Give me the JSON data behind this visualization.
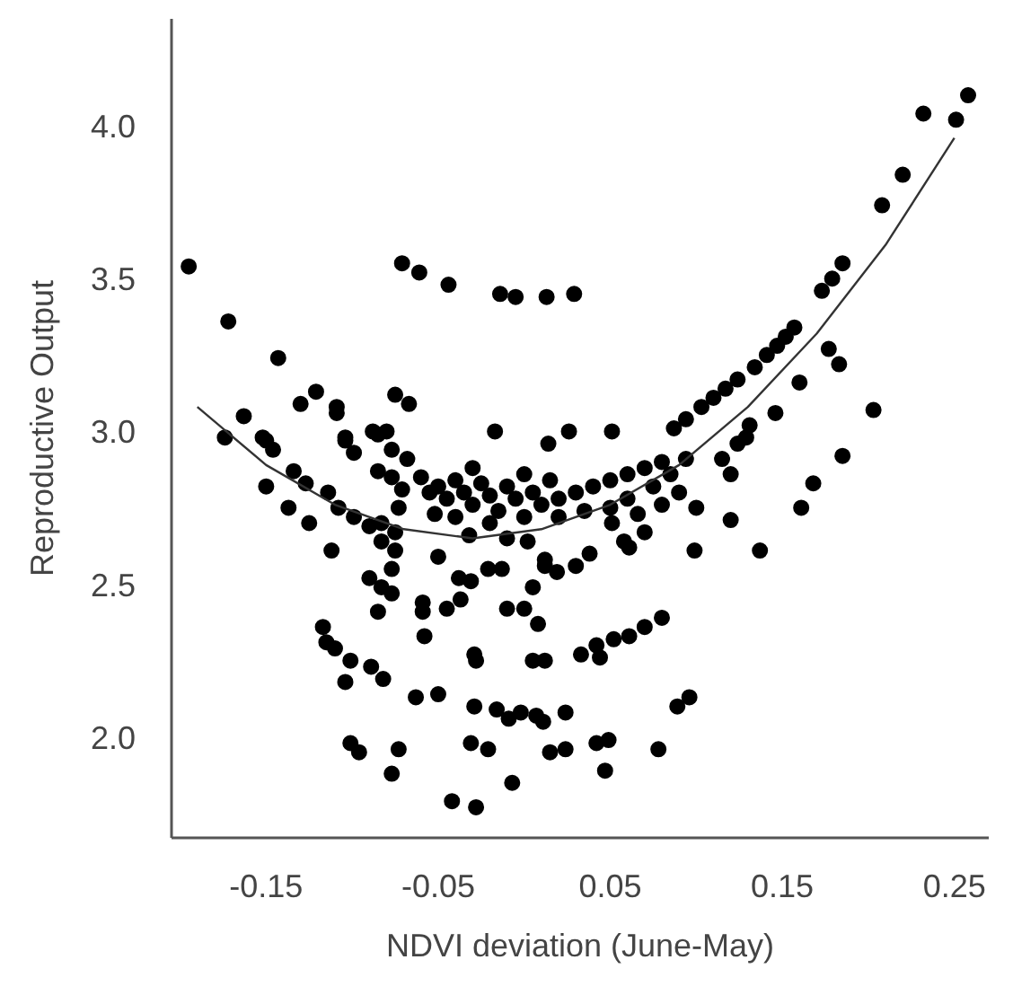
{
  "chart_data": {
    "type": "scatter",
    "xlabel": "NDVI deviation (June-May)",
    "ylabel": "Reproductive Output",
    "xlim": [
      -0.205,
      0.27
    ],
    "ylim": [
      1.67,
      4.35
    ],
    "xticks": [
      -0.15,
      -0.05,
      0.05,
      0.15,
      0.25
    ],
    "yticks": [
      {
        "value": 2,
        "label": "2.0"
      },
      2.5,
      {
        "value": 3,
        "label": "3.0"
      },
      3.5,
      {
        "value": 4,
        "label": "4.0"
      }
    ],
    "grid": false,
    "series": [
      {
        "color": "#000000",
        "marker": "circle",
        "x": [
          -0.195,
          -0.172,
          -0.143,
          -0.071,
          -0.061,
          -0.044,
          -0.014,
          -0.005,
          0.013,
          0.029,
          -0.163,
          -0.174,
          -0.13,
          -0.121,
          -0.109,
          -0.109,
          -0.075,
          -0.067,
          -0.152,
          -0.104,
          -0.088,
          -0.08,
          -0.017,
          0.014,
          0.051,
          0.258,
          0.232,
          0.251,
          0.22,
          0.208,
          0.185,
          0.179,
          0.173,
          0.157,
          0.152,
          0.147,
          0.141,
          0.134,
          0.124,
          0.117,
          0.11,
          0.103,
          0.094,
          0.087,
          0.177,
          0.183,
          0.16,
          0.146,
          0.203,
          0.131,
          0.026,
          -0.15,
          -0.146,
          -0.134,
          -0.127,
          -0.15,
          -0.137,
          -0.125,
          -0.114,
          -0.108,
          -0.099,
          -0.09,
          -0.112,
          -0.104,
          -0.099,
          -0.085,
          -0.077,
          -0.068,
          -0.085,
          -0.077,
          -0.071,
          -0.073,
          -0.083,
          -0.083,
          -0.075,
          -0.075,
          -0.077,
          -0.09,
          -0.083,
          -0.077,
          -0.085,
          -0.117,
          -0.115,
          -0.11,
          -0.101,
          -0.104,
          -0.089,
          -0.082,
          -0.101,
          -0.096,
          -0.073,
          -0.077,
          -0.063,
          -0.05,
          -0.059,
          -0.059,
          -0.058,
          -0.05,
          -0.045,
          -0.037,
          -0.038,
          -0.031,
          -0.021,
          -0.013,
          -0.052,
          -0.032,
          -0.029,
          -0.028,
          -0.029,
          -0.016,
          -0.009,
          -0.002,
          0.007,
          0.011,
          -0.031,
          -0.021,
          -0.007,
          -0.042,
          -0.028,
          0.015,
          -0.01,
          0.0,
          0.008,
          0.005,
          0.012,
          0.005,
          0.012,
          -0.01,
          0.002,
          0.185,
          0.168,
          0.161,
          0.12,
          0.115,
          0.124,
          0.129,
          0.1,
          0.12,
          0.099,
          0.137,
          0.09,
          0.08,
          0.094,
          0.066,
          0.07,
          0.058,
          0.061,
          0.05,
          0.051,
          0.038,
          0.03,
          0.019,
          0.012,
          0.08,
          0.07,
          0.061,
          0.052,
          0.042,
          0.033,
          0.044,
          0.096,
          0.089,
          0.024,
          0.049,
          0.042,
          0.024,
          0.078,
          0.047,
          0.02,
          0.03,
          0.04,
          0.05,
          0.06,
          0.07,
          0.08,
          0.02,
          0.035,
          0.06,
          0.075,
          0.085,
          -0.06,
          -0.055,
          -0.05,
          -0.045,
          -0.04,
          -0.035,
          -0.03,
          -0.025,
          -0.02,
          -0.015,
          -0.01,
          -0.005,
          0.0,
          0.005,
          0.01,
          0.015,
          -0.02,
          -0.04,
          0.0,
          -0.03
        ],
        "values": [
          3.54,
          3.36,
          3.24,
          3.55,
          3.52,
          3.48,
          3.45,
          3.44,
          3.44,
          3.45,
          3.05,
          2.98,
          3.09,
          3.13,
          3.08,
          3.06,
          3.12,
          3.09,
          2.98,
          2.98,
          3.0,
          3.0,
          3.0,
          2.96,
          3.0,
          4.1,
          4.04,
          4.02,
          3.84,
          3.74,
          3.55,
          3.5,
          3.46,
          3.34,
          3.31,
          3.28,
          3.25,
          3.21,
          3.17,
          3.14,
          3.11,
          3.08,
          3.04,
          3.01,
          3.27,
          3.22,
          3.16,
          3.06,
          3.07,
          3.02,
          3.0,
          2.97,
          2.94,
          2.87,
          2.83,
          2.82,
          2.75,
          2.7,
          2.8,
          2.75,
          2.72,
          2.69,
          2.61,
          2.97,
          2.93,
          2.99,
          2.94,
          2.91,
          2.87,
          2.85,
          2.81,
          2.75,
          2.7,
          2.64,
          2.67,
          2.61,
          2.55,
          2.52,
          2.49,
          2.47,
          2.41,
          2.36,
          2.31,
          2.29,
          2.25,
          2.18,
          2.23,
          2.19,
          1.98,
          1.95,
          1.96,
          1.88,
          2.13,
          2.14,
          2.44,
          2.41,
          2.33,
          2.59,
          2.42,
          2.45,
          2.52,
          2.51,
          2.55,
          2.55,
          2.73,
          2.66,
          2.27,
          2.25,
          2.1,
          2.09,
          2.06,
          2.08,
          2.07,
          2.05,
          1.98,
          1.96,
          1.85,
          1.79,
          1.77,
          1.95,
          2.42,
          2.42,
          2.37,
          2.25,
          2.25,
          2.49,
          2.56,
          2.65,
          2.64,
          2.92,
          2.83,
          2.75,
          2.86,
          2.91,
          2.96,
          2.98,
          2.75,
          2.71,
          2.61,
          2.61,
          2.8,
          2.76,
          2.91,
          2.73,
          2.67,
          2.64,
          2.62,
          2.75,
          2.7,
          2.6,
          2.56,
          2.54,
          2.58,
          2.39,
          2.36,
          2.33,
          2.32,
          2.3,
          2.27,
          2.26,
          2.13,
          2.1,
          2.08,
          1.99,
          1.98,
          1.96,
          1.96,
          1.89,
          2.78,
          2.8,
          2.82,
          2.84,
          2.86,
          2.88,
          2.9,
          2.72,
          2.74,
          2.78,
          2.82,
          2.86,
          2.85,
          2.8,
          2.82,
          2.78,
          2.84,
          2.8,
          2.76,
          2.83,
          2.79,
          2.74,
          2.82,
          2.78,
          2.72,
          2.8,
          2.76,
          2.84,
          2.7,
          2.72,
          2.86,
          2.88
        ]
      },
      {
        "type": "line",
        "color": "#333333",
        "marker": "none",
        "line_style": "solid",
        "x": [
          -0.19,
          -0.15,
          -0.11,
          -0.07,
          -0.03,
          0.01,
          0.05,
          0.09,
          0.13,
          0.17,
          0.21,
          0.25
        ],
        "values": [
          3.08,
          2.89,
          2.76,
          2.68,
          2.65,
          2.68,
          2.76,
          2.89,
          3.08,
          3.32,
          3.61,
          3.96
        ]
      }
    ]
  }
}
